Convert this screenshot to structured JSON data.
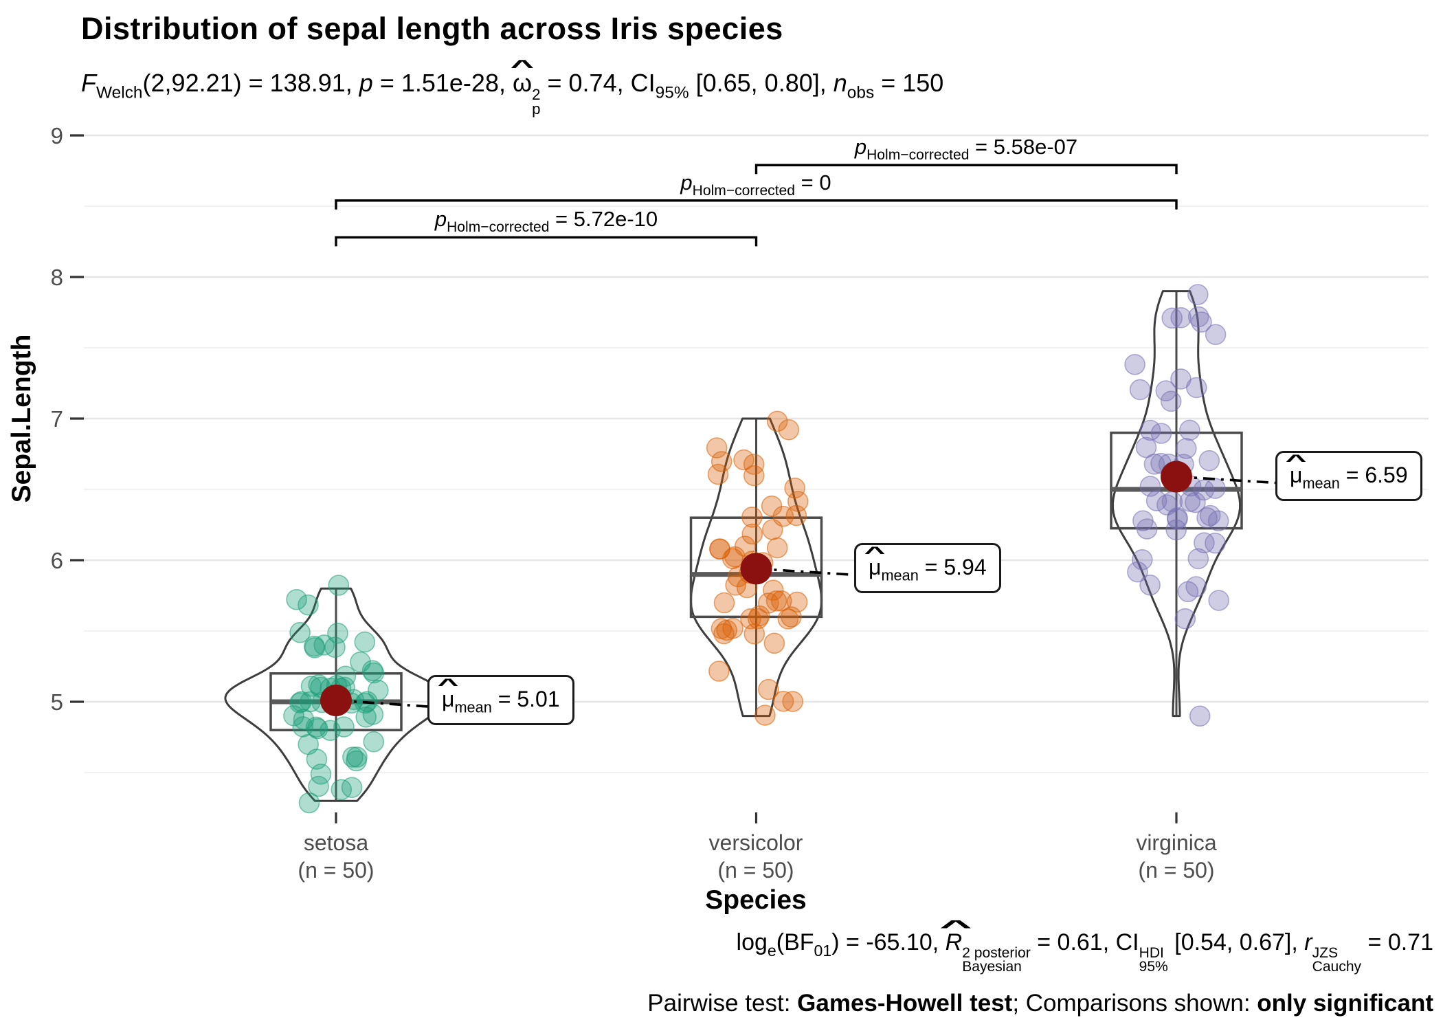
{
  "title": "Distribution of sepal length across Iris species",
  "subtitle": {
    "f_sym": "F",
    "f_sub": "Welch",
    "seg1": "(2,92.21) = 138.91, ",
    "p_sym": "p",
    "seg2": " = 1.51e-28, ",
    "omega_sym": "ω",
    "omega_hat": "^",
    "omega_sup": "2",
    "omega_sub": "p",
    "seg3": " = 0.74, ",
    "ci_sym": "CI",
    "ci_sub": "95%",
    "seg4": " [0.65, 0.80], ",
    "n_sym": "n",
    "n_sub": "obs",
    "seg5": " = 150"
  },
  "y_axis": {
    "label": "Sepal.Length",
    "ticks": [
      9,
      8,
      7,
      6,
      5
    ]
  },
  "x_axis": {
    "label": "Species"
  },
  "mean_label": {
    "hat": "^",
    "sym": "μ",
    "sub": "mean",
    "eq": " = "
  },
  "comp_label": {
    "sym": "p",
    "sub": "Holm−corrected",
    "eq": " = "
  },
  "caption": {
    "log_sym": "log",
    "log_sub": "e",
    "seg1": "(BF",
    "bf_sub": "01",
    "seg2": ") = -65.10, ",
    "r2_sym": "R",
    "r2_hat": "^",
    "r2_sup": "2 posterior",
    "r2_sub": "Bayesian",
    "seg3": " = 0.61, ",
    "ci_sym": "CI",
    "ci_sup": "HDI",
    "ci_sub": "95%",
    "seg4": " [0.54, 0.67], ",
    "r_sym": "r",
    "r_sup": "JZS",
    "r_sub": "Cauchy",
    "seg5": " = 0.71"
  },
  "footer": {
    "prefix": "Pairwise test: ",
    "test": "Games-Howell test",
    "middle": "; Comparisons shown: ",
    "emphasis": "only significant"
  },
  "chart_data": {
    "type": "violin",
    "title": "Distribution of sepal length across Iris species",
    "xlabel": "Species",
    "ylabel": "Sepal.Length",
    "ylim": [
      4.1,
      9.1
    ],
    "y_major_ticks": [
      5,
      6,
      7,
      8,
      9
    ],
    "y_minor_ticks": [
      4.5,
      5.5,
      6.5,
      7.5,
      8.5
    ],
    "grid": "on",
    "mean_point_color": "#8B1111",
    "groups": [
      {
        "name": "setosa",
        "label": "setosa",
        "n_label": "(n = 50)",
        "n": 50,
        "color": "#1B9E77",
        "mean": 5.01,
        "mean_text": "5.01",
        "median": 5.0,
        "q1": 4.8,
        "q3": 5.2,
        "min": 4.3,
        "max": 5.8,
        "values": [
          5.1,
          4.9,
          4.7,
          4.6,
          5.0,
          5.4,
          4.6,
          5.0,
          4.4,
          4.9,
          5.4,
          4.8,
          4.8,
          4.3,
          5.8,
          5.7,
          5.4,
          5.1,
          5.7,
          5.1,
          5.4,
          5.1,
          4.6,
          5.1,
          4.8,
          5.0,
          5.0,
          5.2,
          5.2,
          4.7,
          4.8,
          5.4,
          5.2,
          5.5,
          4.9,
          5.0,
          5.5,
          4.9,
          4.4,
          5.1,
          5.0,
          4.5,
          4.4,
          5.0,
          5.1,
          4.8,
          5.1,
          4.6,
          5.3,
          5.0
        ]
      },
      {
        "name": "versicolor",
        "label": "versicolor",
        "n_label": "(n = 50)",
        "n": 50,
        "color": "#D95F02",
        "mean": 5.94,
        "mean_text": "5.94",
        "median": 5.9,
        "q1": 5.6,
        "q3": 6.3,
        "min": 4.9,
        "max": 7.0,
        "values": [
          7.0,
          6.4,
          6.9,
          5.5,
          6.5,
          5.7,
          6.3,
          4.9,
          6.6,
          5.2,
          5.0,
          5.9,
          6.0,
          6.1,
          5.6,
          6.7,
          5.6,
          5.8,
          6.2,
          5.6,
          5.9,
          6.1,
          6.3,
          6.1,
          6.4,
          6.6,
          6.8,
          6.7,
          6.0,
          5.7,
          5.5,
          5.5,
          5.8,
          6.0,
          5.4,
          6.0,
          6.7,
          6.3,
          5.6,
          5.5,
          5.5,
          6.1,
          5.8,
          5.0,
          5.6,
          5.7,
          5.7,
          6.2,
          5.1,
          5.7
        ]
      },
      {
        "name": "virginica",
        "label": "virginica",
        "n_label": "(n = 50)",
        "n": 50,
        "color": "#7570B3",
        "mean": 6.59,
        "mean_text": "6.59",
        "median": 6.5,
        "q1": 6.225,
        "q3": 6.9,
        "min": 4.9,
        "max": 7.9,
        "values": [
          6.3,
          5.8,
          7.1,
          6.3,
          6.5,
          7.6,
          4.9,
          7.3,
          6.7,
          7.2,
          6.5,
          6.4,
          6.8,
          5.7,
          5.8,
          6.4,
          6.5,
          7.7,
          7.7,
          6.0,
          6.9,
          5.6,
          7.7,
          6.3,
          6.7,
          7.2,
          6.2,
          6.1,
          6.4,
          7.2,
          7.4,
          7.9,
          6.4,
          6.3,
          6.1,
          7.7,
          6.3,
          6.4,
          6.0,
          6.9,
          6.7,
          6.9,
          5.8,
          6.8,
          6.7,
          6.7,
          6.3,
          6.5,
          6.2,
          5.9
        ]
      }
    ],
    "comparisons": [
      {
        "from": 1,
        "to": 2,
        "bar_value": 8.79,
        "p_text": "5.58e-07"
      },
      {
        "from": 0,
        "to": 2,
        "bar_value": 8.54,
        "p_text": "0"
      },
      {
        "from": 0,
        "to": 1,
        "bar_value": 8.28,
        "p_text": "5.72e-10"
      }
    ]
  }
}
